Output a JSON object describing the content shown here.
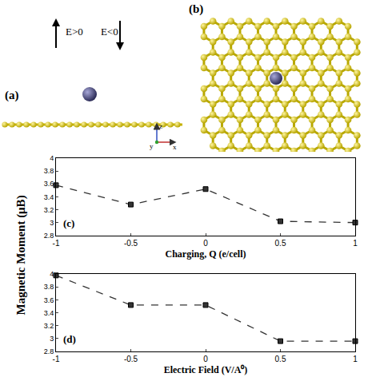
{
  "diagram": {
    "panels": [
      {
        "label": "(a)",
        "arrows": [
          "E>0",
          "E<0"
        ],
        "axes": [
          "z",
          "y",
          "x"
        ]
      },
      {
        "label": "(b)"
      }
    ]
  },
  "shared_y_label": "Magnetic Moment (μB)",
  "chart_data": [
    {
      "type": "line",
      "title": "(c)",
      "x_label": "Charging, Q (e/cell)",
      "x": [
        -1,
        -0.5,
        0,
        0.5,
        1
      ],
      "values": [
        3.58,
        3.28,
        3.52,
        3.02,
        3.0
      ],
      "color": "#333333",
      "marker": "square",
      "line_style": "dash",
      "xlim": [
        -1,
        1
      ],
      "xticks": [
        -1,
        -0.5,
        0,
        0.5,
        1
      ],
      "ylim": [
        2.8,
        4
      ],
      "yticks": [
        2.8,
        3,
        3.2,
        3.4,
        3.6,
        3.8,
        4
      ],
      "grid": false
    },
    {
      "type": "line",
      "title": "(d)",
      "x_label": "Electric Field (V/A⁰)",
      "x": [
        -1,
        -0.5,
        0,
        0.5,
        1
      ],
      "values": [
        3.98,
        3.52,
        3.52,
        2.96,
        2.96
      ],
      "color": "#333333",
      "marker": "square",
      "line_style": "dash",
      "xlim": [
        -1,
        1
      ],
      "xticks": [
        -1,
        -0.5,
        0,
        0.5,
        1
      ],
      "ylim": [
        2.8,
        4
      ],
      "yticks": [
        2.8,
        3,
        3.2,
        3.4,
        3.6,
        3.8,
        4
      ],
      "grid": false
    }
  ]
}
